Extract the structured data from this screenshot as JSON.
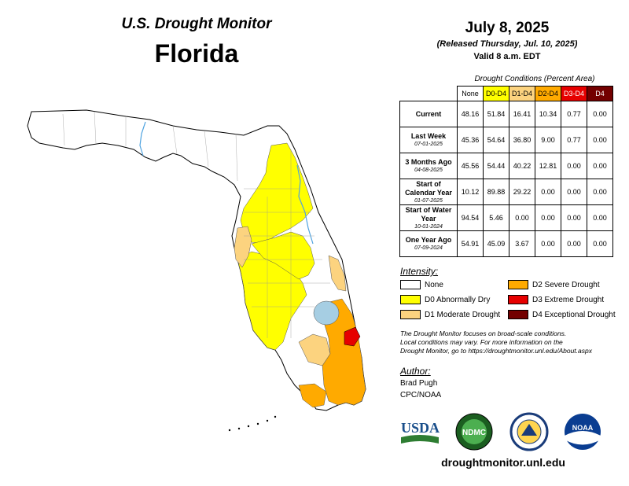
{
  "header": {
    "title": "U.S. Drought Monitor",
    "state": "Florida",
    "date": "July 8, 2025",
    "released": "(Released Thursday, Jul. 10, 2025)",
    "valid": "Valid 8 a.m. EDT"
  },
  "conditions_table": {
    "title": "Drought Conditions (Percent Area)",
    "columns": [
      "None",
      "D0-D4",
      "D1-D4",
      "D2-D4",
      "D3-D4",
      "D4"
    ],
    "column_colors": [
      "#ffffff",
      "#ffff00",
      "#fcd37f",
      "#ffaa00",
      "#e60000",
      "#730000"
    ],
    "column_text_colors": [
      "#000000",
      "#000000",
      "#000000",
      "#000000",
      "#ffffff",
      "#ffffff"
    ],
    "rows": [
      {
        "label": "Current",
        "sublabel": "",
        "values": [
          "48.16",
          "51.84",
          "16.41",
          "10.34",
          "0.77",
          "0.00"
        ]
      },
      {
        "label": "Last Week",
        "sublabel": "07-01-2025",
        "values": [
          "45.36",
          "54.64",
          "36.80",
          "9.00",
          "0.77",
          "0.00"
        ]
      },
      {
        "label": "3 Months Ago",
        "sublabel": "04-08-2025",
        "values": [
          "45.56",
          "54.44",
          "40.22",
          "12.81",
          "0.00",
          "0.00"
        ]
      },
      {
        "label": "Start of Calendar Year",
        "sublabel": "01-07-2025",
        "values": [
          "10.12",
          "89.88",
          "29.22",
          "0.00",
          "0.00",
          "0.00"
        ]
      },
      {
        "label": "Start of Water Year",
        "sublabel": "10-01-2024",
        "values": [
          "94.54",
          "5.46",
          "0.00",
          "0.00",
          "0.00",
          "0.00"
        ]
      },
      {
        "label": "One Year Ago",
        "sublabel": "07-09-2024",
        "values": [
          "54.91",
          "45.09",
          "3.67",
          "0.00",
          "0.00",
          "0.00"
        ]
      }
    ]
  },
  "legend": {
    "title": "Intensity:",
    "items": [
      {
        "label": "None",
        "color": "#ffffff"
      },
      {
        "label": "D0 Abnormally Dry",
        "color": "#ffff00"
      },
      {
        "label": "D1 Moderate Drought",
        "color": "#fcd37f"
      },
      {
        "label": "D2 Severe Drought",
        "color": "#ffaa00"
      },
      {
        "label": "D3 Extreme Drought",
        "color": "#e60000"
      },
      {
        "label": "D4 Exceptional Drought",
        "color": "#730000"
      }
    ]
  },
  "note": {
    "line1": "The Drought Monitor focuses on broad-scale conditions.",
    "line2": "Local conditions may vary. For more information on the",
    "line3": "Drought Monitor, go to https://droughtmonitor.unl.edu/About.aspx"
  },
  "author": {
    "title": "Author:",
    "name": "Brad Pugh",
    "org": "CPC/NOAA"
  },
  "logos": {
    "usda": "USDA",
    "ndmc": "NDMC",
    "noaa": "NOAA"
  },
  "footer": {
    "url": "droughtmonitor.unl.edu"
  },
  "map_colors": {
    "none": "#ffffff",
    "d0": "#ffff00",
    "d1": "#fcd37f",
    "d2": "#ffaa00",
    "d3": "#e60000",
    "water": "#a6cee3"
  }
}
